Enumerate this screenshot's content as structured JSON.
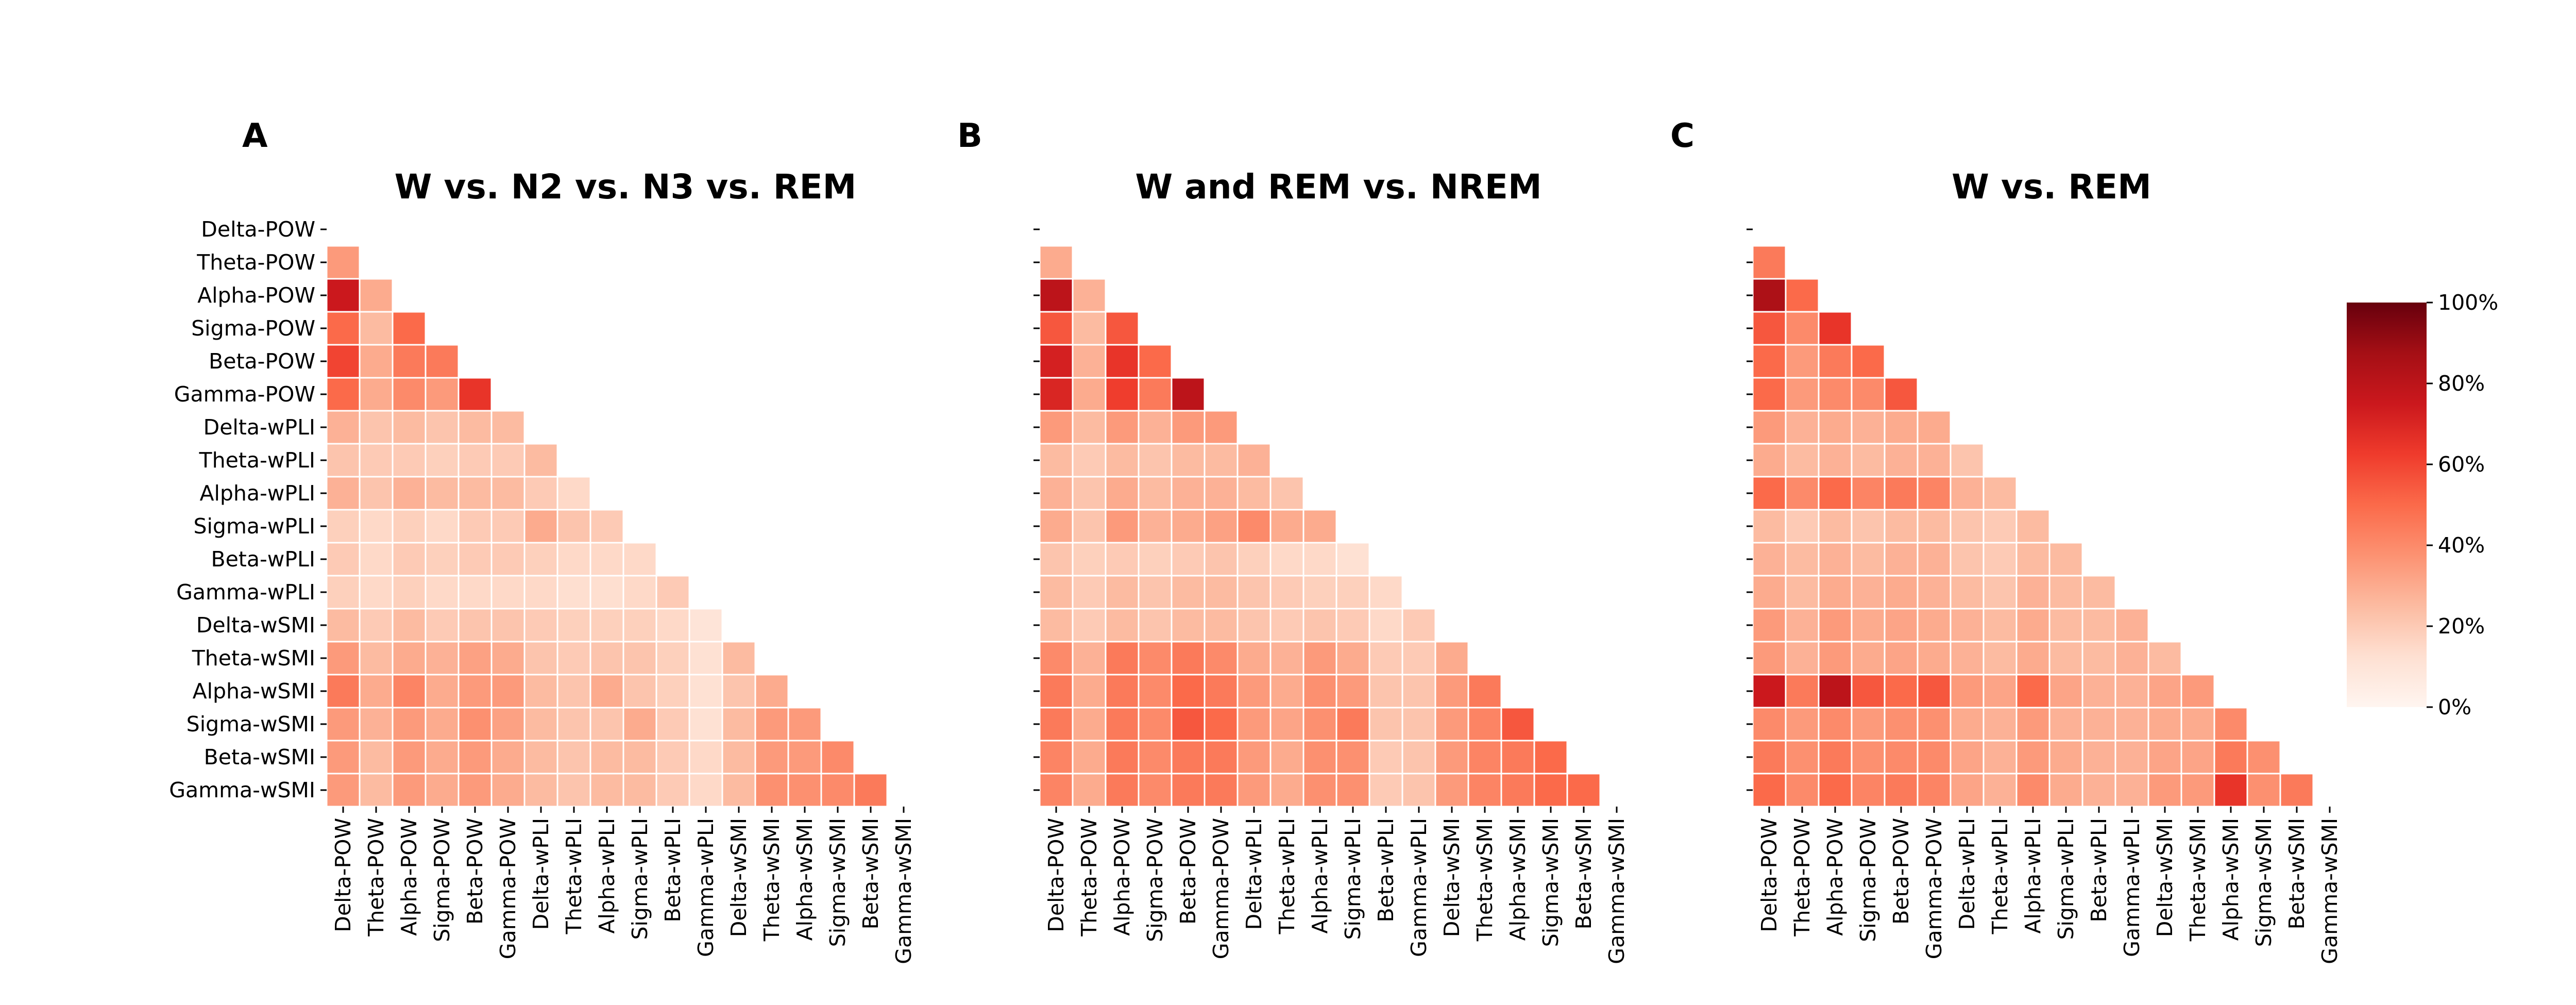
{
  "chart_data": [
    {
      "type": "heatmap",
      "panel": "A",
      "title": "W vs. N2 vs. N3 vs. REM",
      "row_labels": [
        "Delta-POW",
        "Theta-POW",
        "Alpha-POW",
        "Sigma-POW",
        "Beta-POW",
        "Gamma-POW",
        "Delta-wPLI",
        "Theta-wPLI",
        "Alpha-wPLI",
        "Sigma-wPLI",
        "Beta-wPLI",
        "Gamma-wPLI",
        "Delta-wSMI",
        "Theta-wSMI",
        "Alpha-wSMI",
        "Sigma-wSMI",
        "Beta-wSMI",
        "Gamma-wSMI"
      ],
      "col_labels": [
        "Delta-POW",
        "Theta-POW",
        "Alpha-POW",
        "Sigma-POW",
        "Beta-POW",
        "Gamma-POW",
        "Delta-wPLI",
        "Theta-wPLI",
        "Alpha-wPLI",
        "Sigma-wPLI",
        "Beta-wPLI",
        "Gamma-wPLI",
        "Delta-wSMI",
        "Theta-wSMI",
        "Alpha-wSMI",
        "Sigma-wSMI",
        "Beta-wSMI",
        "Gamma-wSMI"
      ],
      "show_y_labels": true,
      "values": [
        [],
        [
          35
        ],
        [
          75,
          30
        ],
        [
          50,
          25,
          50
        ],
        [
          60,
          30,
          45,
          45
        ],
        [
          50,
          30,
          40,
          35,
          65
        ],
        [
          28,
          22,
          25,
          22,
          25,
          25
        ],
        [
          22,
          20,
          20,
          18,
          20,
          20,
          25
        ],
        [
          28,
          22,
          28,
          25,
          25,
          25,
          20,
          15
        ],
        [
          18,
          15,
          18,
          15,
          20,
          20,
          30,
          22,
          20
        ],
        [
          20,
          15,
          20,
          18,
          20,
          20,
          18,
          15,
          15,
          15
        ],
        [
          18,
          15,
          18,
          15,
          15,
          15,
          15,
          13,
          13,
          15,
          20
        ],
        [
          25,
          20,
          25,
          20,
          22,
          22,
          20,
          18,
          18,
          18,
          15,
          10
        ],
        [
          35,
          25,
          30,
          28,
          33,
          30,
          22,
          20,
          22,
          22,
          18,
          12,
          25
        ],
        [
          45,
          30,
          42,
          30,
          35,
          35,
          25,
          22,
          30,
          22,
          18,
          12,
          22,
          30
        ],
        [
          35,
          28,
          35,
          30,
          38,
          33,
          25,
          22,
          22,
          30,
          20,
          12,
          25,
          35,
          35
        ],
        [
          35,
          25,
          35,
          30,
          35,
          30,
          25,
          22,
          25,
          25,
          20,
          15,
          25,
          35,
          35,
          40
        ],
        [
          35,
          25,
          35,
          30,
          35,
          30,
          25,
          22,
          25,
          25,
          20,
          15,
          25,
          38,
          38,
          40,
          45
        ]
      ]
    },
    {
      "type": "heatmap",
      "panel": "B",
      "title": "W and REM vs. NREM",
      "row_labels": [
        "Delta-POW",
        "Theta-POW",
        "Alpha-POW",
        "Sigma-POW",
        "Beta-POW",
        "Gamma-POW",
        "Delta-wPLI",
        "Theta-wPLI",
        "Alpha-wPLI",
        "Sigma-wPLI",
        "Beta-wPLI",
        "Gamma-wPLI",
        "Delta-wSMI",
        "Theta-wSMI",
        "Alpha-wSMI",
        "Sigma-wSMI",
        "Beta-wSMI",
        "Gamma-wSMI"
      ],
      "col_labels": [
        "Delta-POW",
        "Theta-POW",
        "Alpha-POW",
        "Sigma-POW",
        "Beta-POW",
        "Gamma-POW",
        "Delta-wPLI",
        "Theta-wPLI",
        "Alpha-wPLI",
        "Sigma-wPLI",
        "Beta-wPLI",
        "Gamma-wPLI",
        "Delta-wSMI",
        "Theta-wSMI",
        "Alpha-wSMI",
        "Sigma-wSMI",
        "Beta-wSMI",
        "Gamma-wSMI"
      ],
      "show_y_labels": false,
      "values": [
        [],
        [
          30
        ],
        [
          80,
          28
        ],
        [
          55,
          25,
          55
        ],
        [
          72,
          28,
          65,
          50
        ],
        [
          70,
          30,
          62,
          45,
          80
        ],
        [
          35,
          25,
          35,
          28,
          35,
          35
        ],
        [
          25,
          20,
          25,
          22,
          25,
          25,
          28
        ],
        [
          28,
          22,
          30,
          25,
          28,
          28,
          25,
          22
        ],
        [
          30,
          22,
          35,
          28,
          30,
          33,
          40,
          30,
          30
        ],
        [
          22,
          18,
          20,
          18,
          20,
          22,
          18,
          15,
          15,
          12
        ],
        [
          25,
          20,
          25,
          22,
          25,
          25,
          22,
          20,
          18,
          18,
          15
        ],
        [
          25,
          20,
          25,
          22,
          25,
          25,
          22,
          20,
          22,
          20,
          15,
          20
        ],
        [
          40,
          28,
          45,
          40,
          45,
          40,
          30,
          28,
          35,
          30,
          20,
          20,
          30
        ],
        [
          45,
          30,
          45,
          40,
          50,
          45,
          35,
          30,
          38,
          35,
          22,
          22,
          35,
          45
        ],
        [
          45,
          30,
          45,
          40,
          55,
          50,
          35,
          32,
          38,
          45,
          22,
          22,
          35,
          42,
          55
        ],
        [
          42,
          30,
          45,
          40,
          45,
          45,
          35,
          30,
          38,
          38,
          20,
          22,
          35,
          42,
          45,
          50
        ],
        [
          42,
          30,
          45,
          40,
          45,
          45,
          35,
          30,
          38,
          38,
          20,
          22,
          35,
          42,
          45,
          50,
          50
        ]
      ]
    },
    {
      "type": "heatmap",
      "panel": "C",
      "title": "W vs. REM",
      "row_labels": [
        "Delta-POW",
        "Theta-POW",
        "Alpha-POW",
        "Sigma-POW",
        "Beta-POW",
        "Gamma-POW",
        "Delta-wPLI",
        "Theta-wPLI",
        "Alpha-wPLI",
        "Sigma-wPLI",
        "Beta-wPLI",
        "Gamma-wPLI",
        "Delta-wSMI",
        "Theta-wSMI",
        "Alpha-wSMI",
        "Sigma-wSMI",
        "Beta-wSMI",
        "Gamma-wSMI"
      ],
      "col_labels": [
        "Delta-POW",
        "Theta-POW",
        "Alpha-POW",
        "Sigma-POW",
        "Beta-POW",
        "Gamma-POW",
        "Delta-wPLI",
        "Theta-wPLI",
        "Alpha-wPLI",
        "Sigma-wPLI",
        "Beta-wPLI",
        "Gamma-wPLI",
        "Delta-wSMI",
        "Theta-wSMI",
        "Alpha-wSMI",
        "Sigma-wSMI",
        "Beta-wSMI",
        "Gamma-wSMI"
      ],
      "show_y_labels": false,
      "values": [
        [],
        [
          45
        ],
        [
          85,
          50
        ],
        [
          55,
          40,
          65
        ],
        [
          50,
          35,
          45,
          50
        ],
        [
          50,
          35,
          40,
          40,
          55
        ],
        [
          35,
          28,
          30,
          28,
          30,
          30
        ],
        [
          30,
          25,
          28,
          25,
          28,
          28,
          22
        ],
        [
          50,
          40,
          50,
          42,
          45,
          42,
          28,
          25
        ],
        [
          25,
          20,
          25,
          22,
          25,
          25,
          22,
          20,
          25
        ],
        [
          28,
          25,
          28,
          25,
          28,
          28,
          22,
          20,
          25,
          25
        ],
        [
          30,
          25,
          30,
          28,
          30,
          28,
          25,
          22,
          28,
          25,
          25
        ],
        [
          35,
          28,
          35,
          30,
          32,
          30,
          28,
          25,
          30,
          25,
          25,
          28
        ],
        [
          35,
          28,
          35,
          30,
          32,
          30,
          28,
          25,
          30,
          25,
          25,
          28,
          25
        ],
        [
          75,
          45,
          80,
          55,
          50,
          55,
          35,
          32,
          50,
          32,
          28,
          28,
          32,
          35
        ],
        [
          40,
          35,
          40,
          35,
          38,
          38,
          30,
          28,
          35,
          28,
          28,
          28,
          30,
          30,
          40
        ],
        [
          45,
          38,
          45,
          38,
          40,
          40,
          32,
          28,
          35,
          30,
          28,
          28,
          32,
          32,
          45,
          38
        ],
        [
          50,
          40,
          50,
          42,
          45,
          42,
          32,
          28,
          40,
          30,
          28,
          28,
          35,
          35,
          65,
          38,
          45
        ]
      ]
    }
  ],
  "colorbar": {
    "cmap": "Reds",
    "ticks": [
      "0%",
      "20%",
      "40%",
      "60%",
      "80%",
      "100%"
    ],
    "range": [
      0,
      100
    ]
  }
}
